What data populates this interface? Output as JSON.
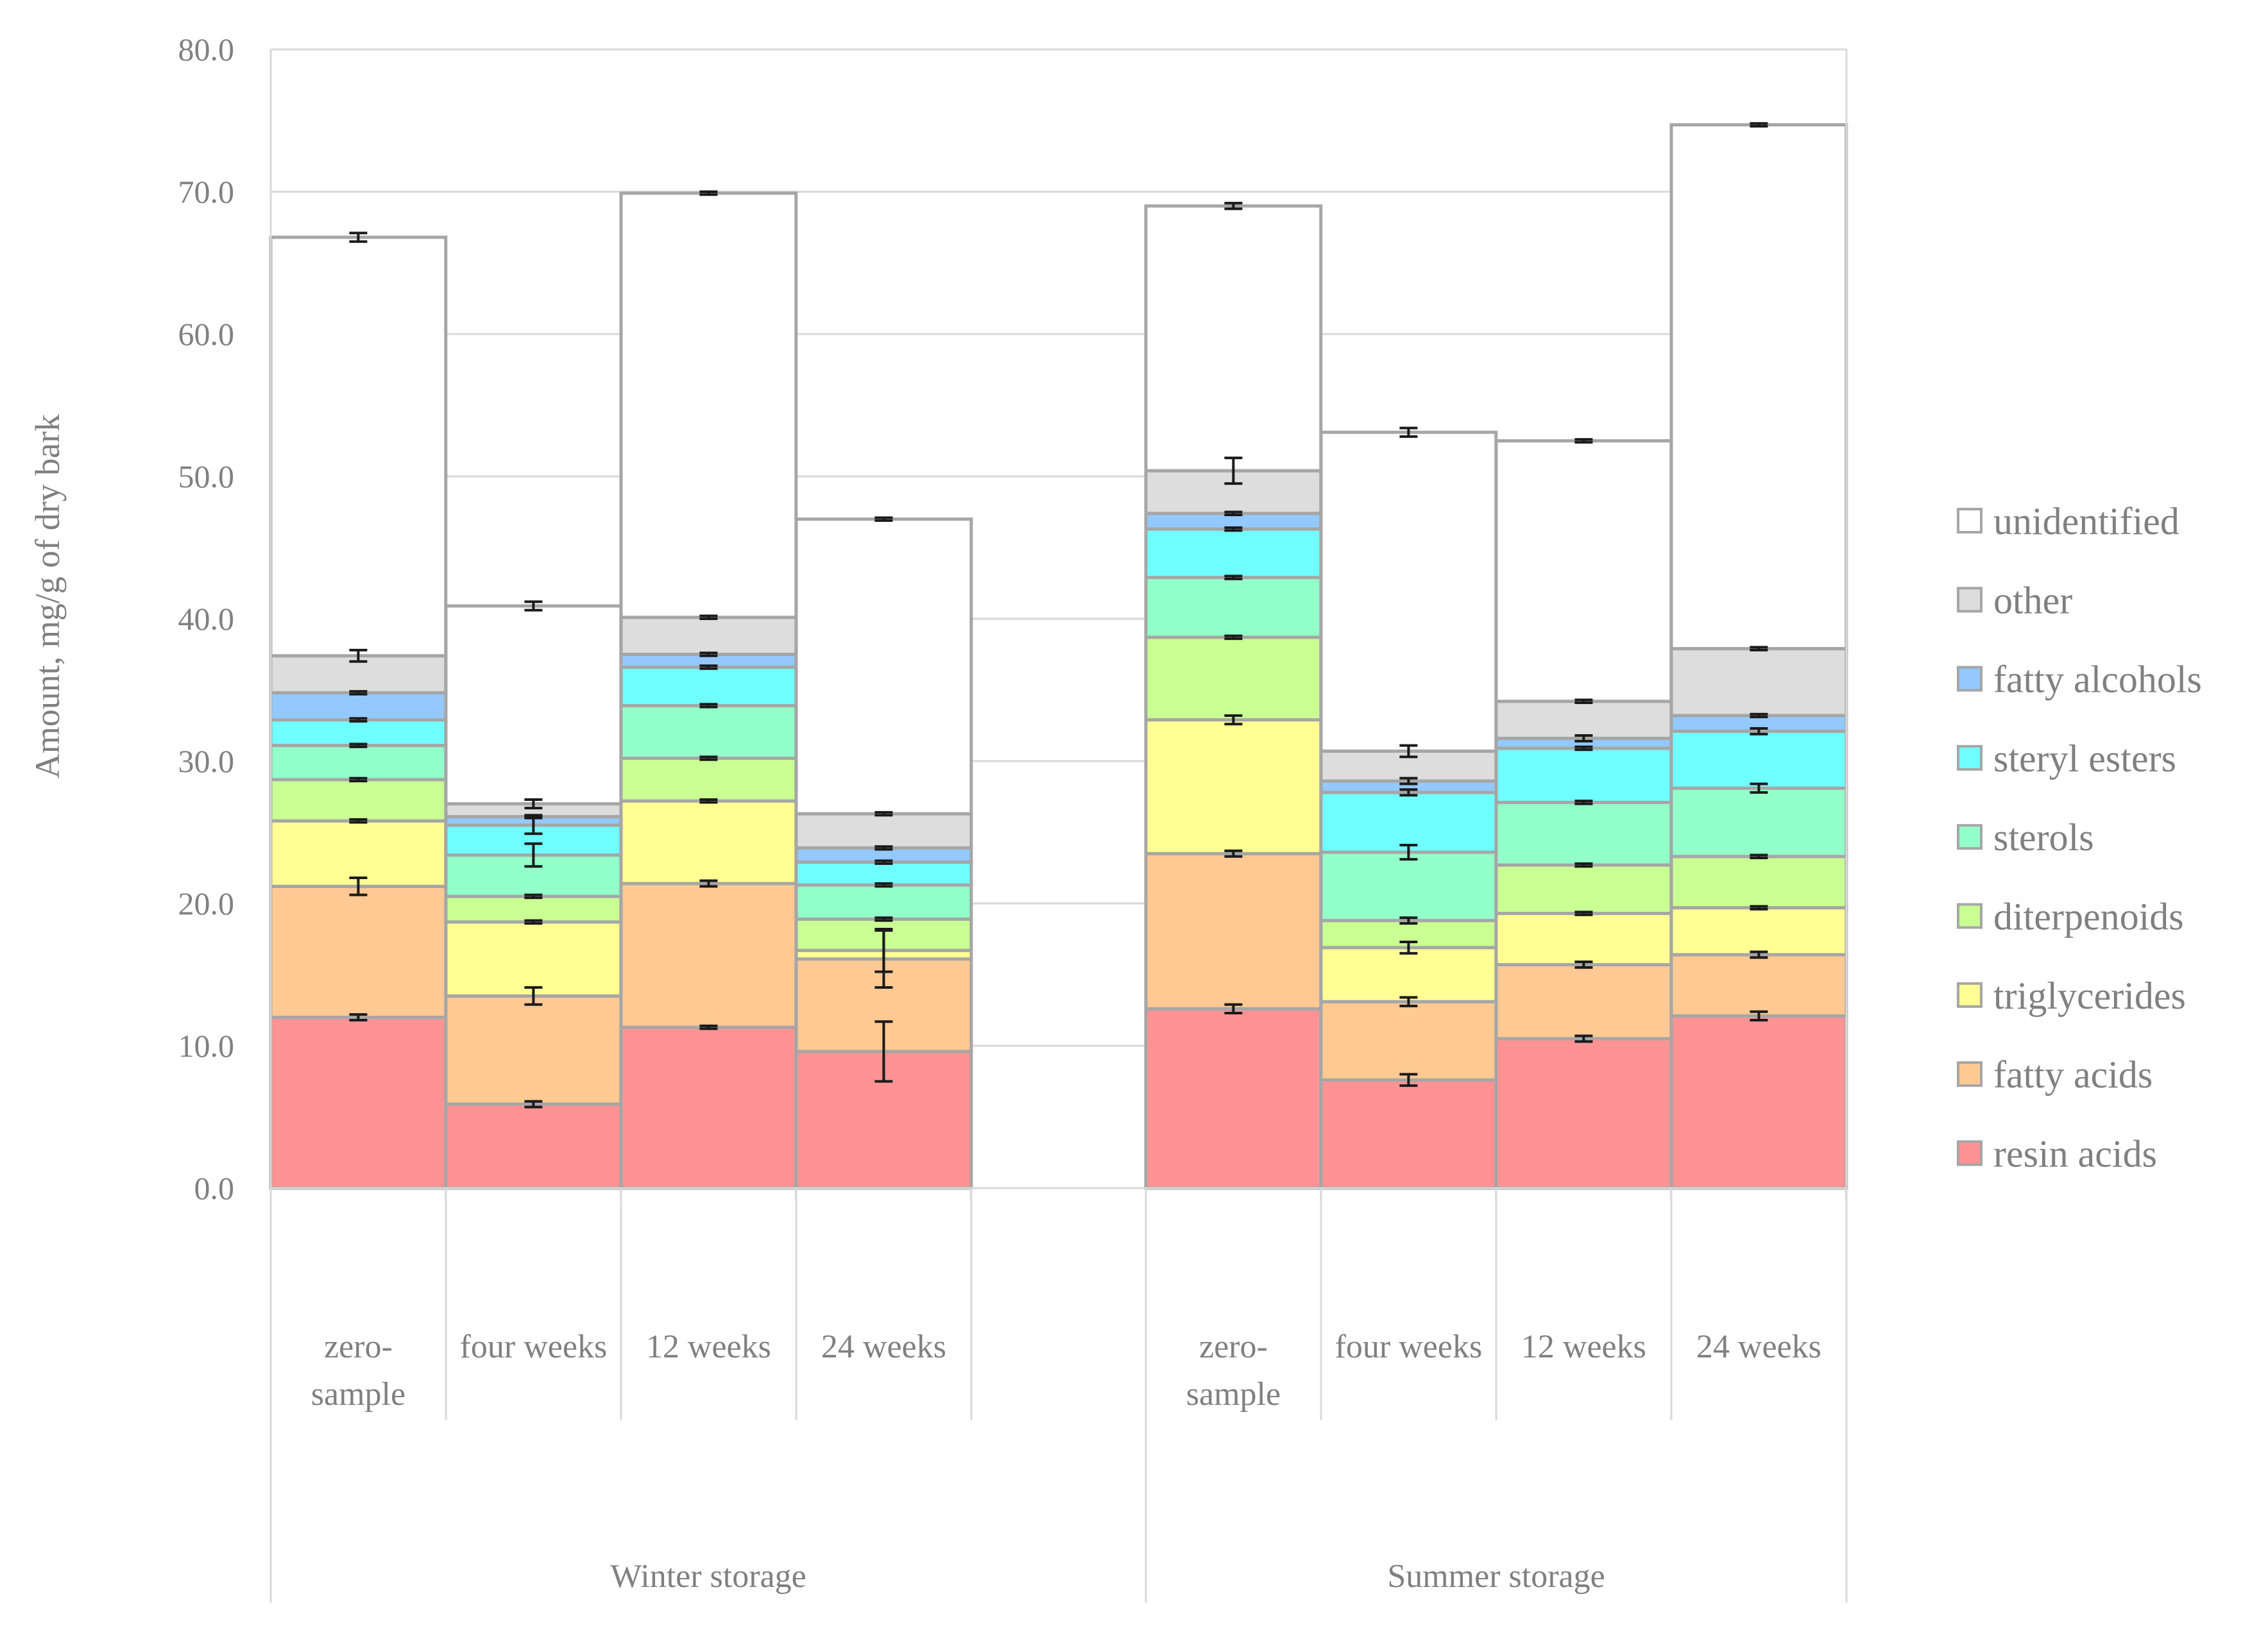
{
  "chart_data": {
    "type": "bar",
    "stacked": true,
    "ylabel": "Amount, mg/g of dry bark",
    "xlabel": "",
    "ylim": [
      0,
      80
    ],
    "yticks": [
      "0.0",
      "10.0",
      "20.0",
      "30.0",
      "40.0",
      "50.0",
      "60.0",
      "70.0",
      "80.0"
    ],
    "grid": true,
    "legend_position": "right",
    "groups": [
      {
        "label": "Winter storage",
        "categories": [
          "zero-sample",
          "four weeks",
          "12 weeks",
          "24 weeks"
        ]
      },
      {
        "label": "Summer storage",
        "categories": [
          "zero-sample",
          "four weeks",
          "12 weeks",
          "24 weeks"
        ]
      }
    ],
    "category_display": [
      [
        "zero-",
        "sample"
      ],
      [
        "four weeks"
      ],
      [
        "12 weeks"
      ],
      [
        "24 weeks"
      ],
      [
        "zero-",
        "sample"
      ],
      [
        "four weeks"
      ],
      [
        "12 weeks"
      ],
      [
        "24 weeks"
      ]
    ],
    "series": [
      {
        "name": "resin acids",
        "color": "#FF9393",
        "values": [
          12.0,
          5.9,
          11.3,
          9.6,
          12.6,
          7.6,
          10.5,
          12.1
        ],
        "errors": [
          0.2,
          0.2,
          0.1,
          2.1,
          0.3,
          0.4,
          0.2,
          0.3
        ]
      },
      {
        "name": "fatty acids",
        "color": "#FFC993",
        "values": [
          9.2,
          7.6,
          10.1,
          6.5,
          10.9,
          5.5,
          5.2,
          4.3
        ],
        "errors": [
          0.6,
          0.6,
          0.2,
          2.0,
          0.2,
          0.3,
          0.2,
          0.2
        ]
      },
      {
        "name": "triglycerides",
        "color": "#FFFF93",
        "values": [
          4.6,
          5.2,
          5.8,
          0.6,
          9.4,
          3.8,
          3.6,
          3.3
        ],
        "errors": [
          0.1,
          0.1,
          0.1,
          1.5,
          0.3,
          0.4,
          0.1,
          0.1
        ]
      },
      {
        "name": "diterpenoids",
        "color": "#C9FF93",
        "values": [
          2.9,
          1.8,
          3.0,
          2.2,
          5.8,
          1.9,
          3.4,
          3.6
        ],
        "errors": [
          0.1,
          0.1,
          0.1,
          0.1,
          0.1,
          0.2,
          0.1,
          0.1
        ]
      },
      {
        "name": "sterols",
        "color": "#93FFC9",
        "values": [
          2.4,
          2.9,
          3.7,
          2.4,
          4.2,
          4.8,
          4.4,
          4.8
        ],
        "errors": [
          0.1,
          0.8,
          0.1,
          0.1,
          0.1,
          0.5,
          0.1,
          0.3
        ]
      },
      {
        "name": "steryl esters",
        "color": "#70FFFF",
        "values": [
          1.8,
          2.1,
          2.7,
          1.6,
          3.4,
          4.2,
          3.8,
          4.0
        ],
        "errors": [
          0.1,
          0.6,
          0.1,
          0.1,
          0.1,
          0.2,
          0.1,
          0.2
        ]
      },
      {
        "name": "fatty alcohols",
        "color": "#93C9FF",
        "values": [
          1.9,
          0.6,
          0.9,
          1.0,
          1.1,
          0.8,
          0.7,
          1.1
        ],
        "errors": [
          0.1,
          0.1,
          0.1,
          0.1,
          0.1,
          0.2,
          0.2,
          0.1
        ]
      },
      {
        "name": "other",
        "color": "#DDDDDD",
        "values": [
          2.6,
          0.9,
          2.6,
          2.4,
          3.0,
          2.1,
          2.6,
          4.7
        ],
        "errors": [
          0.4,
          0.3,
          0.1,
          0.1,
          0.9,
          0.4,
          0.1,
          0.1
        ]
      },
      {
        "name": "unidentified",
        "color": "#FFFFFF",
        "values": [
          29.4,
          13.9,
          29.8,
          20.7,
          18.6,
          22.4,
          18.3,
          36.8
        ],
        "errors": [
          0.3,
          0.3,
          0.1,
          0.1,
          0.2,
          0.3,
          0.1,
          0.1
        ]
      }
    ]
  }
}
